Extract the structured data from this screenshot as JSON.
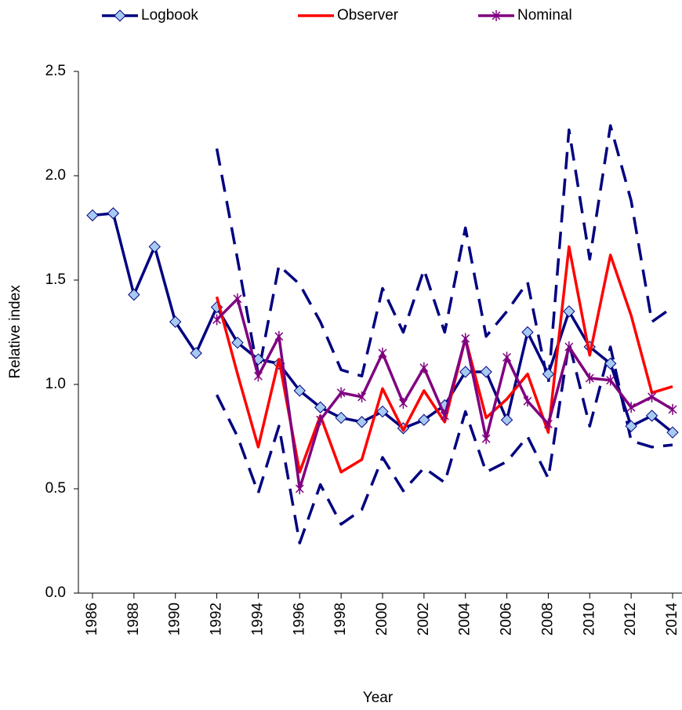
{
  "chart_data": {
    "type": "line",
    "x_label": "Year",
    "y_label": "Relative index",
    "x": [
      1986,
      1987,
      1988,
      1989,
      1990,
      1991,
      1992,
      1993,
      1994,
      1995,
      1996,
      1997,
      1998,
      1999,
      2000,
      2001,
      2002,
      2003,
      2004,
      2005,
      2006,
      2007,
      2008,
      2009,
      2010,
      2011,
      2012,
      2013,
      2014
    ],
    "xlim": [
      1986,
      2014
    ],
    "xticks": [
      1986,
      1988,
      1990,
      1992,
      1994,
      1996,
      1998,
      2000,
      2002,
      2004,
      2006,
      2008,
      2010,
      2012,
      2014
    ],
    "ylim": [
      0,
      2.5
    ],
    "yticks": [
      {
        "value": 0,
        "label": "0.0"
      },
      {
        "value": 0.5,
        "label": "0.5"
      },
      {
        "value": 1,
        "label": "1.0"
      },
      {
        "value": 1.5,
        "label": "1.5"
      },
      {
        "value": 2,
        "label": "2.0"
      },
      {
        "value": 2.5,
        "label": "2.5"
      }
    ],
    "legend": "top",
    "series": [
      {
        "name": "Logbook",
        "color": "#000080",
        "marker": "diamond",
        "marker_color": "#a6caf0",
        "values": [
          1.81,
          1.82,
          1.43,
          1.66,
          1.3,
          1.15,
          1.37,
          1.2,
          1.12,
          1.1,
          0.97,
          0.89,
          0.84,
          0.82,
          0.87,
          0.79,
          0.83,
          0.9,
          1.06,
          1.06,
          0.83,
          1.25,
          1.05,
          1.35,
          1.18,
          1.1,
          0.8,
          0.85,
          0.77
        ],
        "upper": [
          null,
          null,
          null,
          null,
          null,
          null,
          2.13,
          1.6,
          1.05,
          1.57,
          1.48,
          1.3,
          1.07,
          1.04,
          1.46,
          1.25,
          1.55,
          1.25,
          1.75,
          1.23,
          1.35,
          1.49,
          1.0,
          2.22,
          1.6,
          2.24,
          1.88,
          1.3,
          1.37
        ],
        "lower": [
          null,
          null,
          null,
          null,
          null,
          null,
          0.95,
          0.75,
          0.48,
          0.8,
          0.24,
          0.52,
          0.33,
          0.4,
          0.65,
          0.49,
          0.6,
          0.53,
          0.87,
          0.58,
          0.63,
          0.75,
          0.55,
          1.2,
          0.8,
          1.18,
          0.73,
          0.7,
          0.71
        ]
      },
      {
        "name": "Observer",
        "color": "#ff0000",
        "marker": "none",
        "values": [
          null,
          null,
          null,
          null,
          null,
          null,
          1.42,
          1.05,
          0.7,
          1.12,
          0.58,
          0.85,
          0.58,
          0.64,
          0.98,
          0.78,
          0.97,
          0.82,
          1.22,
          0.84,
          0.93,
          1.05,
          0.77,
          1.66,
          1.14,
          1.62,
          1.33,
          0.96,
          0.99
        ]
      },
      {
        "name": "Nominal",
        "color": "#800080",
        "marker": "star",
        "values": [
          null,
          null,
          null,
          null,
          null,
          null,
          1.31,
          1.41,
          1.04,
          1.23,
          0.5,
          0.83,
          0.96,
          0.94,
          1.15,
          0.91,
          1.08,
          0.85,
          1.22,
          0.74,
          1.13,
          0.92,
          0.81,
          1.18,
          1.03,
          1.02,
          0.89,
          0.94,
          0.88
        ]
      }
    ]
  }
}
